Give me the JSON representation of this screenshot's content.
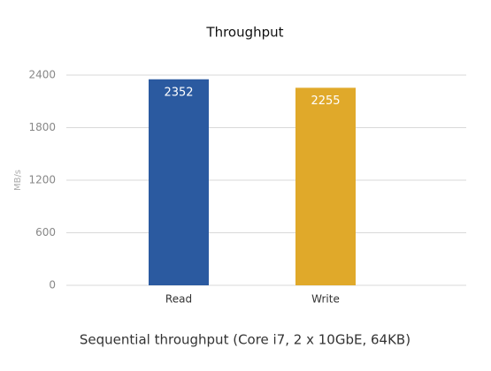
{
  "chart_data": {
    "type": "bar",
    "title": "Throughput",
    "x_label": "Sequential throughput (Core i7, 2 x 10GbE, 64KB)",
    "y_label": "MB/s",
    "categories": [
      "Read",
      "Write"
    ],
    "values": [
      2352,
      2255
    ],
    "colors": [
      "#2b5aa0",
      "#e0a92a"
    ],
    "ylim": [
      0,
      2400
    ],
    "yticks": [
      0,
      600,
      1200,
      1800,
      2400
    ],
    "grid": true
  }
}
